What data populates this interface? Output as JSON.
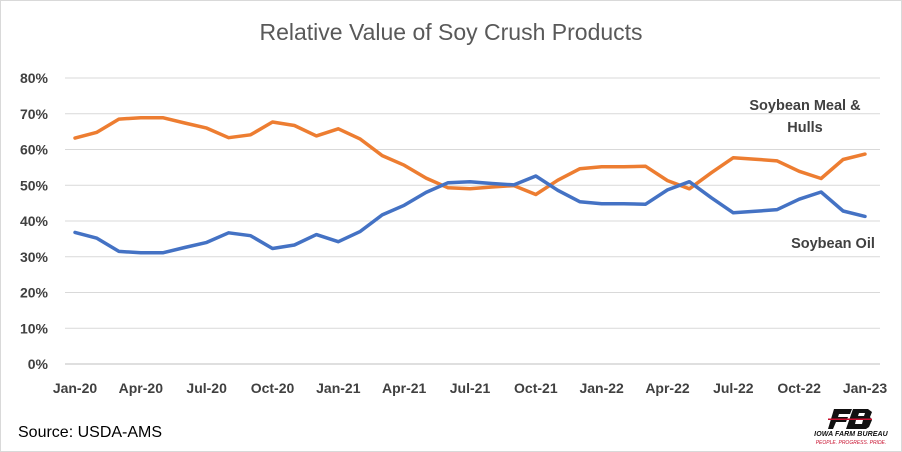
{
  "chart_data": {
    "type": "line",
    "title": "Relative Value of Soy Crush Products",
    "y_ticks": [
      "0%",
      "10%",
      "20%",
      "30%",
      "40%",
      "50%",
      "60%",
      "70%",
      "80%"
    ],
    "ylim": [
      0,
      80
    ],
    "x_tick_labels": [
      "Jan-20",
      "Apr-20",
      "Jul-20",
      "Oct-20",
      "Jan-21",
      "Apr-21",
      "Jul-21",
      "Oct-21",
      "Jan-22",
      "Apr-22",
      "Jul-22",
      "Oct-22",
      "Jan-23"
    ],
    "x": [
      "Jan-20",
      "Feb-20",
      "Mar-20",
      "Apr-20",
      "May-20",
      "Jun-20",
      "Jul-20",
      "Aug-20",
      "Sep-20",
      "Oct-20",
      "Nov-20",
      "Dec-20",
      "Jan-21",
      "Feb-21",
      "Mar-21",
      "Apr-21",
      "May-21",
      "Jun-21",
      "Jul-21",
      "Aug-21",
      "Sep-21",
      "Oct-21",
      "Nov-21",
      "Dec-21",
      "Jan-22",
      "Feb-22",
      "Mar-22",
      "Apr-22",
      "May-22",
      "Jun-22",
      "Jul-22",
      "Aug-22",
      "Sep-22",
      "Oct-22",
      "Nov-22",
      "Dec-22",
      "Jan-23"
    ],
    "grid": true,
    "series": [
      {
        "name": "Soybean Meal & Hulls",
        "color": "#ED7D31",
        "values": [
          63.2,
          64.8,
          68.5,
          68.9,
          68.9,
          67.4,
          66.0,
          63.3,
          64.1,
          67.7,
          66.7,
          63.8,
          65.8,
          62.9,
          58.3,
          55.6,
          52.0,
          49.3,
          49.0,
          49.5,
          49.9,
          47.4,
          51.4,
          54.6,
          55.2,
          55.2,
          55.3,
          51.3,
          49.0,
          53.5,
          57.7,
          57.3,
          56.8,
          53.9,
          51.9,
          57.2,
          58.7
        ]
      },
      {
        "name": "Soybean Oil",
        "color": "#4472C4",
        "values": [
          36.8,
          35.2,
          31.5,
          31.1,
          31.1,
          32.6,
          34.0,
          36.7,
          35.9,
          32.3,
          33.3,
          36.2,
          34.2,
          37.1,
          41.7,
          44.4,
          48.0,
          50.7,
          51.0,
          50.5,
          50.1,
          52.6,
          48.6,
          45.4,
          44.8,
          44.8,
          44.7,
          48.7,
          51.0,
          46.5,
          42.3,
          42.7,
          43.2,
          46.1,
          48.1,
          42.8,
          41.3
        ]
      }
    ]
  },
  "source": "Source: USDA-AMS",
  "logo": {
    "name": "IOWA FARM BUREAU",
    "tagline": "PEOPLE. PROGRESS. PRIDE.",
    "mark": "FB"
  }
}
